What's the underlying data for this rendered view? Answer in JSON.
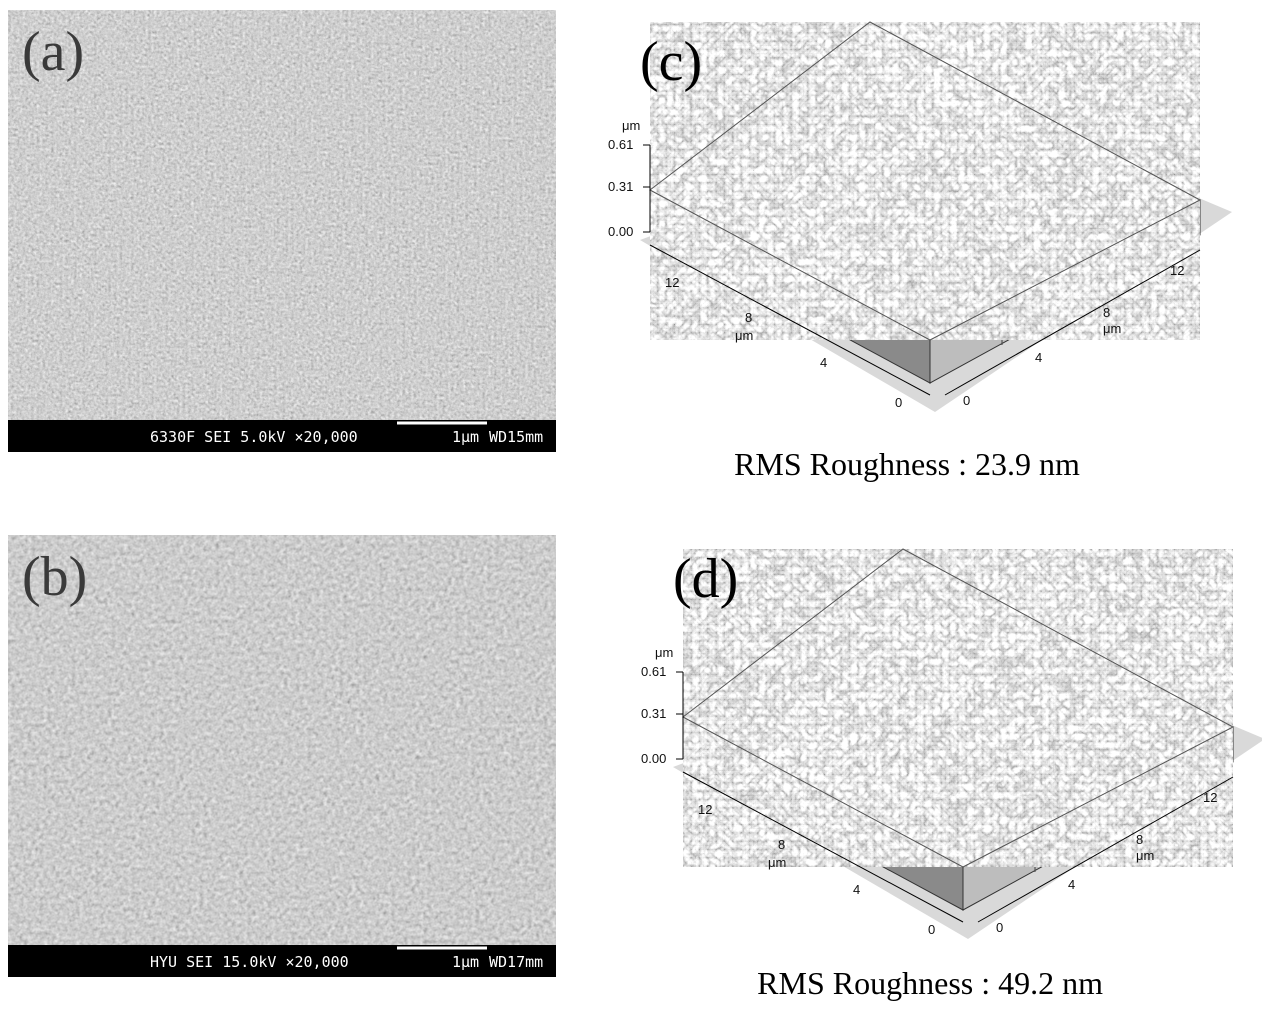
{
  "sem_panels": [
    {
      "label": "(a)",
      "info": "6330F SEI  5.0kV  ×20,000",
      "scale": "1μm",
      "wd": "WD15mm"
    },
    {
      "label": "(b)",
      "info": "HYU SEI 15.0kV  ×20,000",
      "scale": "1μm",
      "wd": "WD17mm"
    }
  ],
  "afm_panels": [
    {
      "label": "(c)",
      "z_unit": "μm",
      "z_ticks": [
        "0.61",
        "0.31",
        "0.00"
      ],
      "x_ticks": [
        "12",
        "8",
        "4",
        "0"
      ],
      "x_unit": "μm",
      "y_ticks": [
        "0",
        "4",
        "8",
        "12"
      ],
      "y_unit": "μm",
      "caption": "RMS Roughness : 23.9 nm"
    },
    {
      "label": "(d)",
      "z_unit": "μm",
      "z_ticks": [
        "0.61",
        "0.31",
        "0.00"
      ],
      "x_ticks": [
        "12",
        "8",
        "4",
        "0"
      ],
      "x_unit": "μm",
      "y_ticks": [
        "0",
        "4",
        "8",
        "12"
      ],
      "y_unit": "μm",
      "caption": "RMS Roughness : 49.2 nm"
    }
  ]
}
